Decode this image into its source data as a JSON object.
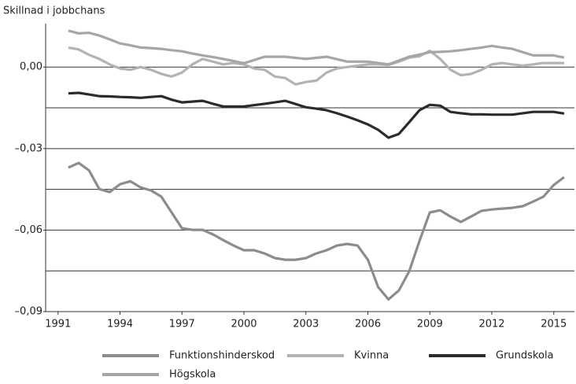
{
  "chart_data": {
    "type": "line",
    "y_label": "Skillnad i jobbchans",
    "x": [
      1991.5,
      1992,
      1992.5,
      1993,
      1993.5,
      1994,
      1994.5,
      1995,
      1995.5,
      1996,
      1996.5,
      1997,
      1997.5,
      1998,
      1998.5,
      1999,
      1999.5,
      2000,
      2000.5,
      2001,
      2001.5,
      2002,
      2002.5,
      2003,
      2003.5,
      2004,
      2004.5,
      2005,
      2005.5,
      2006,
      2006.5,
      2007,
      2007.5,
      2008,
      2008.5,
      2009,
      2009.5,
      2010,
      2010.5,
      2011,
      2011.5,
      2012,
      2012.5,
      2013,
      2013.5,
      2014,
      2014.5,
      2015,
      2015.5
    ],
    "xlim": [
      1990.4,
      2016.0
    ],
    "xticks": [
      1991,
      1994,
      1997,
      2000,
      2003,
      2006,
      2009,
      2012,
      2015
    ],
    "ylim": [
      -0.09,
      0.016
    ],
    "yticks": [
      {
        "value": -0.09,
        "label": "–0,09"
      },
      {
        "value": -0.06,
        "label": "–0,06"
      },
      {
        "value": -0.03,
        "label": "–0,03"
      },
      {
        "value": 0,
        "label": "0,00"
      }
    ],
    "ygrid": [
      -0.09,
      -0.075,
      -0.06,
      -0.045,
      -0.03,
      -0.015,
      0
    ],
    "grid": true,
    "legend": "bottom",
    "series": [
      {
        "name": "Funktionshinderskod",
        "color": "#8c8c8c",
        "values": [
          -0.037,
          -0.0353,
          -0.038,
          -0.0449,
          -0.046,
          -0.0431,
          -0.042,
          -0.0443,
          -0.0454,
          -0.0477,
          -0.0535,
          -0.0593,
          -0.0599,
          -0.0599,
          -0.0616,
          -0.0637,
          -0.0657,
          -0.0674,
          -0.0674,
          -0.0686,
          -0.0703,
          -0.0709,
          -0.0709,
          -0.0703,
          -0.0686,
          -0.0674,
          -0.0657,
          -0.0651,
          -0.0657,
          -0.0709,
          -0.081,
          -0.0855,
          -0.0822,
          -0.0752,
          -0.064,
          -0.0535,
          -0.0527,
          -0.055,
          -0.057,
          -0.055,
          -0.0529,
          -0.0524,
          -0.0521,
          -0.0518,
          -0.0512,
          -0.0495,
          -0.0477,
          -0.0434,
          -0.0405
        ]
      },
      {
        "name": "Kvinna",
        "color": "#b3b3b3",
        "values": [
          0.0072,
          0.0065,
          0.0045,
          0.003,
          0.001,
          -0.0005,
          -0.001,
          0.0,
          -0.001,
          -0.0025,
          -0.0035,
          -0.002,
          0.001,
          0.003,
          0.002,
          0.001,
          0.0015,
          0.001,
          -0.0005,
          -0.001,
          -0.0035,
          -0.004,
          -0.0064,
          -0.0055,
          -0.005,
          -0.002,
          -0.0005,
          0.0,
          0.0005,
          0.001,
          0.001,
          0.0008,
          0.002,
          0.0035,
          0.004,
          0.006,
          0.003,
          -0.001,
          -0.003,
          -0.0025,
          -0.001,
          0.001,
          0.0015,
          0.001,
          0.0005,
          0.001,
          0.0015,
          0.0015,
          0.0015
        ]
      },
      {
        "name": "Grundskola",
        "color": "#2b2b2b",
        "values": [
          -0.0097,
          -0.0095,
          -0.0101,
          -0.0107,
          -0.0108,
          -0.011,
          -0.0111,
          -0.0113,
          -0.011,
          -0.0107,
          -0.012,
          -0.013,
          -0.0127,
          -0.0124,
          -0.0135,
          -0.0145,
          -0.0145,
          -0.0145,
          -0.014,
          -0.0135,
          -0.013,
          -0.0124,
          -0.0136,
          -0.0148,
          -0.0153,
          -0.0159,
          -0.017,
          -0.0182,
          -0.0196,
          -0.0211,
          -0.0231,
          -0.026,
          -0.0246,
          -0.0203,
          -0.0159,
          -0.0139,
          -0.0142,
          -0.0165,
          -0.017,
          -0.0174,
          -0.0174,
          -0.0175,
          -0.0175,
          -0.0175,
          -0.017,
          -0.0165,
          -0.0165,
          -0.0165,
          -0.0171
        ]
      },
      {
        "name": "Högskola",
        "color": "#a6a6a6",
        "values": [
          0.0134,
          0.0124,
          0.0126,
          0.0116,
          0.0102,
          0.0087,
          0.008,
          0.0072,
          0.007,
          0.0067,
          0.0062,
          0.0058,
          0.005,
          0.0043,
          0.0037,
          0.003,
          0.0022,
          0.0014,
          0.0026,
          0.0038,
          0.0038,
          0.0038,
          0.0034,
          0.003,
          0.0034,
          0.0038,
          0.0029,
          0.002,
          0.002,
          0.002,
          0.0015,
          0.001,
          0.0024,
          0.0038,
          0.0046,
          0.0055,
          0.0056,
          0.0058,
          0.0062,
          0.0067,
          0.0072,
          0.0078,
          0.0072,
          0.0067,
          0.0055,
          0.0043,
          0.0043,
          0.0043,
          0.0035
        ]
      }
    ]
  }
}
